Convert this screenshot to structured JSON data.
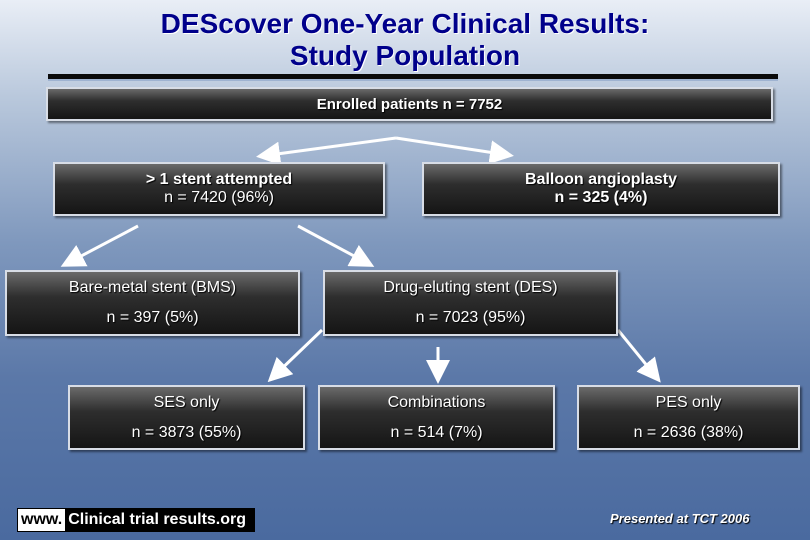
{
  "title": {
    "line1": "DEScover One-Year Clinical Results:",
    "line2": "Study Population"
  },
  "nodes": {
    "enrolled": {
      "line1": "Enrolled patients n = 7752"
    },
    "stent_attempted": {
      "line1": "> 1 stent attempted",
      "line2": "n = 7420 (96%)"
    },
    "balloon": {
      "line1": "Balloon angioplasty",
      "line2": "n = 325 (4%)"
    },
    "bms": {
      "line1": "Bare-metal stent (BMS)",
      "line2": "n = 397 (5%)"
    },
    "des": {
      "line1": "Drug-eluting stent (DES)",
      "line2": "n = 7023 (95%)"
    },
    "ses": {
      "line1": "SES only",
      "line2": "n = 3873 (55%)"
    },
    "combinations": {
      "line1": "Combinations",
      "line2": "n = 514 (7%)"
    },
    "pes": {
      "line1": "PES only",
      "line2": "n = 2636 (38%)"
    }
  },
  "footer": {
    "www": "www.",
    "site": "Clinical trial results.org",
    "presented": "Presented at TCT 2006"
  },
  "colors": {
    "title": "#00008b",
    "box_fill": "#1a1a1a",
    "box_border": "#d8dde6",
    "arrow": "#ffffff"
  }
}
